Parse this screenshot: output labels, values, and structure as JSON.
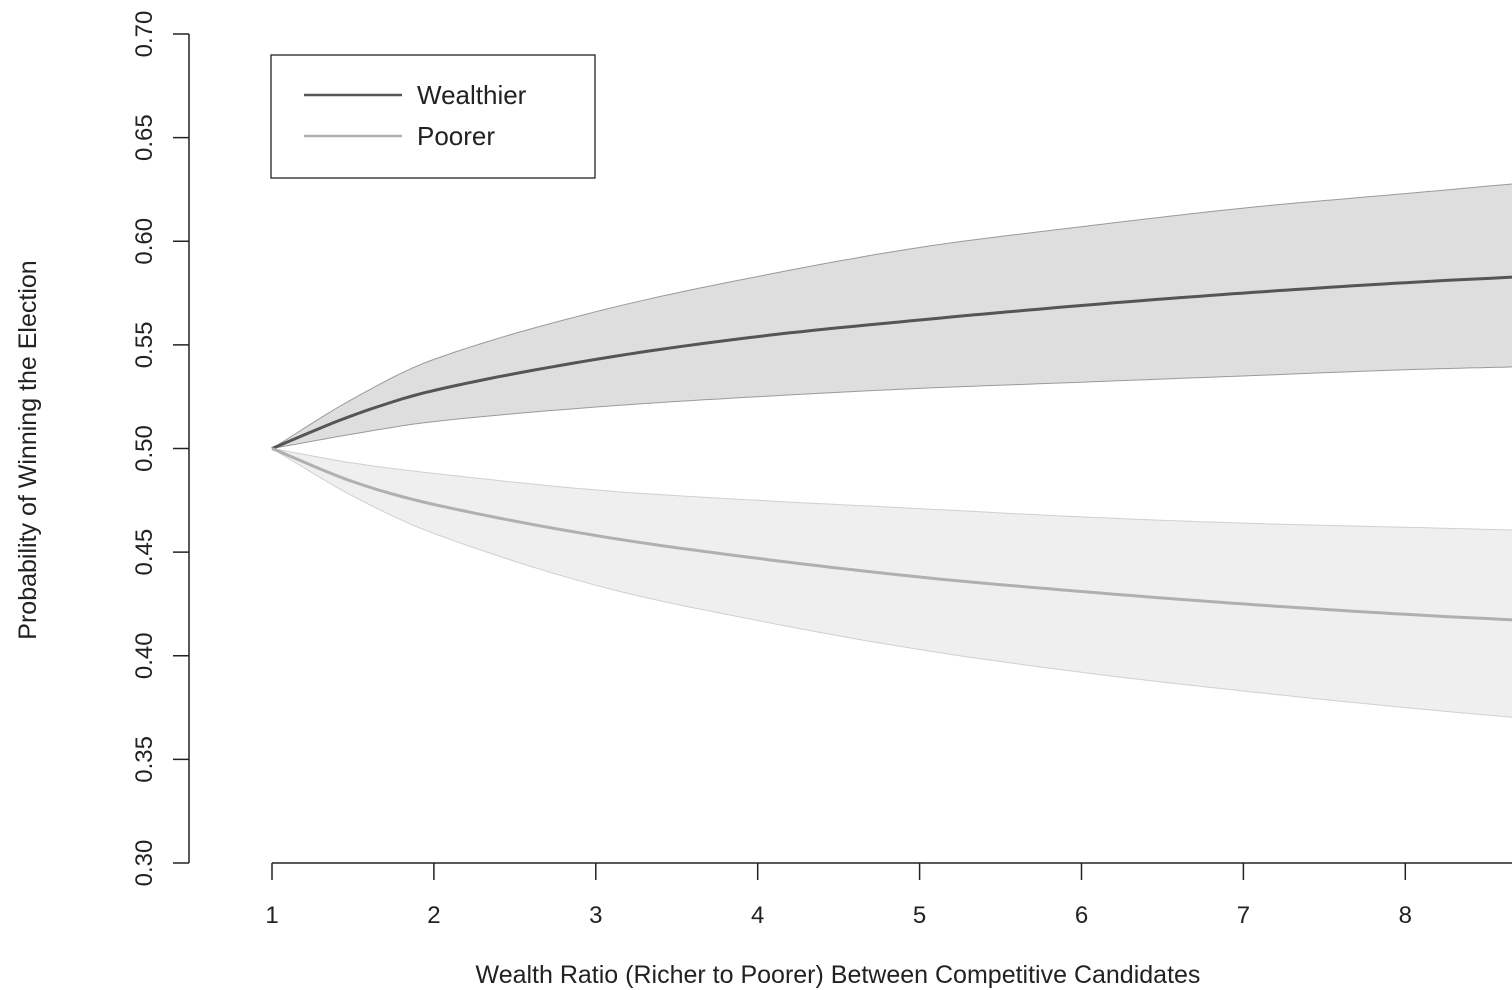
{
  "chart_data": {
    "type": "line",
    "title": "",
    "xlabel": "Wealth Ratio (Richer to Poorer) Between Competitive Candidates",
    "ylabel": "Probability of Winning the Election",
    "xlim": [
      1,
      9
    ],
    "ylim": [
      0.3,
      0.7
    ],
    "x_ticks": [
      1,
      2,
      3,
      4,
      5,
      6,
      7,
      8
    ],
    "x_tick_labels": [
      "1",
      "2",
      "3",
      "4",
      "5",
      "6",
      "7",
      "8"
    ],
    "y_ticks": [
      0.3,
      0.35,
      0.4,
      0.45,
      0.5,
      0.55,
      0.6,
      0.65,
      0.7
    ],
    "y_tick_labels": [
      "0.30",
      "0.35",
      "0.40",
      "0.45",
      "0.50",
      "0.55",
      "0.60",
      "0.65",
      "0.70"
    ],
    "grid": false,
    "legend_position": "top-left",
    "x": [
      1,
      1.5,
      2,
      3,
      4,
      5,
      6,
      7,
      8,
      9
    ],
    "series": [
      {
        "name": "Wealthier",
        "color": "#555555",
        "band_color": "#dedede",
        "values": [
          0.5,
          0.516,
          0.528,
          0.543,
          0.554,
          0.562,
          0.569,
          0.575,
          0.58,
          0.584
        ],
        "lower": [
          0.5,
          0.507,
          0.513,
          0.52,
          0.525,
          0.529,
          0.532,
          0.535,
          0.538,
          0.54
        ],
        "upper": [
          0.5,
          0.524,
          0.543,
          0.566,
          0.583,
          0.597,
          0.607,
          0.616,
          0.623,
          0.63
        ]
      },
      {
        "name": "Poorer",
        "color": "#b0b0b0",
        "band_color": "#efefef",
        "values": [
          0.5,
          0.484,
          0.473,
          0.458,
          0.447,
          0.438,
          0.431,
          0.425,
          0.42,
          0.416
        ],
        "lower": [
          0.5,
          0.477,
          0.459,
          0.434,
          0.417,
          0.403,
          0.392,
          0.383,
          0.375,
          0.368
        ],
        "upper": [
          0.5,
          0.493,
          0.488,
          0.48,
          0.475,
          0.471,
          0.467,
          0.464,
          0.462,
          0.46
        ]
      }
    ]
  }
}
